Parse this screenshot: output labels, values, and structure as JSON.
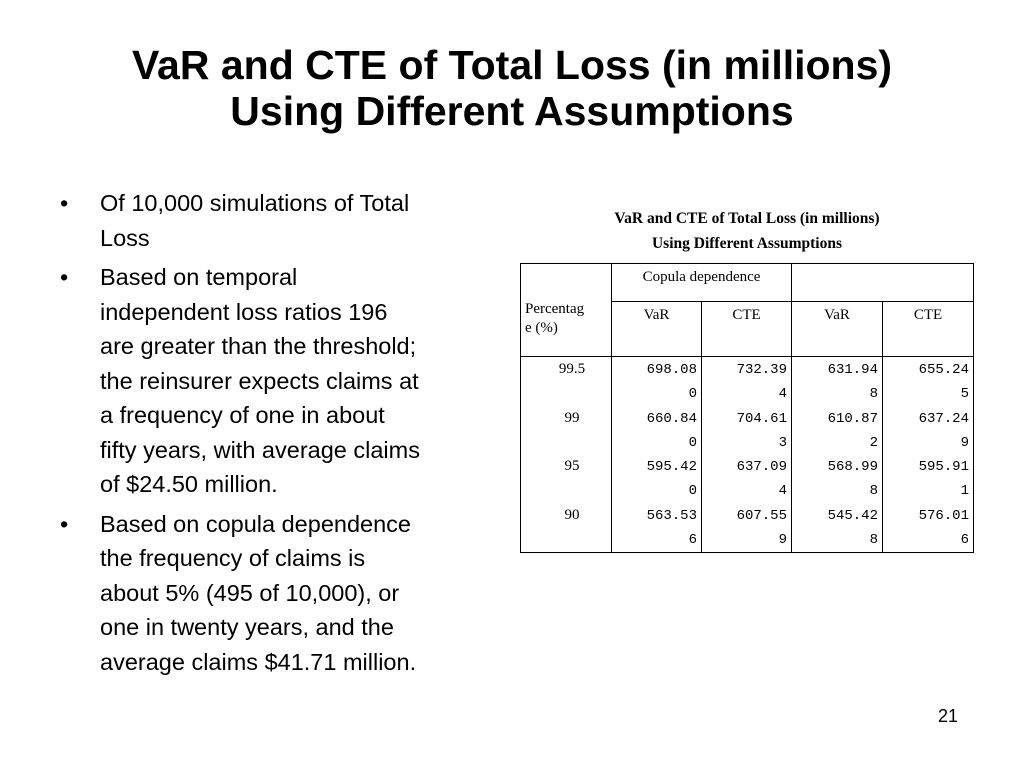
{
  "slide": {
    "title_line1": "VaR and CTE of Total Loss (in millions)",
    "title_line2": "Using Different Assumptions",
    "page_number": "21"
  },
  "bullets": [
    {
      "symbol": "•",
      "lines": [
        "Of 10,000 simulations of Total",
        "Loss"
      ]
    },
    {
      "symbol": "•",
      "lines": [
        "Based on temporal",
        "independent loss ratios 196",
        "are greater than the threshold;",
        "the reinsurer expects claims at",
        "a frequency of one in about",
        "fifty years, with average claims",
        "of $24.50 million."
      ]
    },
    {
      "symbol": "•",
      "lines": [
        "Based on copula dependence",
        "the frequency of claims is",
        "about 5% (495 of 10,000), or",
        "one in twenty years, and the",
        "average claims $41.71 million."
      ]
    }
  ],
  "table": {
    "caption_line1": "VaR and CTE of Total Loss (in millions)",
    "caption_line2": "Using Different Assumptions",
    "group_header_1": "Copula dependence",
    "group_header_2": "",
    "percentage_header_line1": "Percentag",
    "percentage_header_line2": "e (%)",
    "col_headers": [
      "VaR",
      "CTE",
      "VaR",
      "CTE"
    ],
    "rows": [
      {
        "pct": "99.5",
        "values": [
          [
            "698.08",
            "0"
          ],
          [
            "732.39",
            "4"
          ],
          [
            "631.94",
            "8"
          ],
          [
            "655.24",
            "5"
          ]
        ]
      },
      {
        "pct": "99",
        "values": [
          [
            "660.84",
            "0"
          ],
          [
            "704.61",
            "3"
          ],
          [
            "610.87",
            "2"
          ],
          [
            "637.24",
            "9"
          ]
        ]
      },
      {
        "pct": "95",
        "values": [
          [
            "595.42",
            "0"
          ],
          [
            "637.09",
            "4"
          ],
          [
            "568.99",
            "8"
          ],
          [
            "595.91",
            "1"
          ]
        ]
      },
      {
        "pct": "90",
        "values": [
          [
            "563.53",
            "6"
          ],
          [
            "607.55",
            "9"
          ],
          [
            "545.42",
            "8"
          ],
          [
            "576.01",
            "6"
          ]
        ]
      }
    ]
  }
}
